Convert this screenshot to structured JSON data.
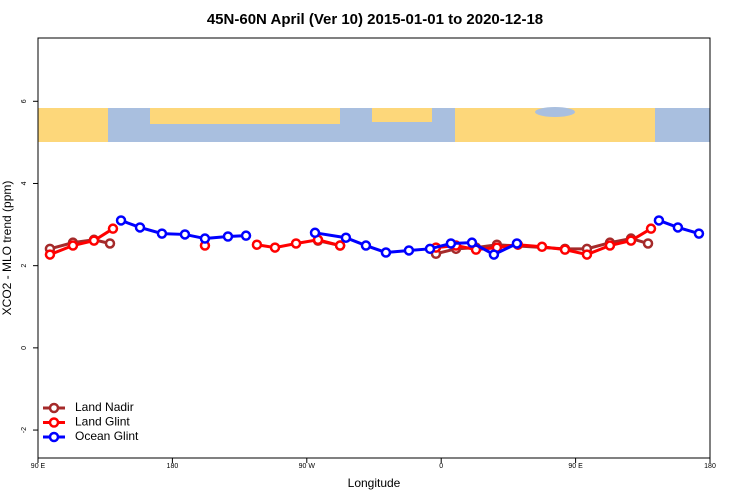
{
  "chart_data": {
    "type": "line",
    "title": "45N-60N April (Ver 10)   2015-01-01 to 2020-12-18",
    "x_label": "Longitude",
    "y_label": "XCO2 - MLO trend (ppm)",
    "xlim": [
      90,
      540
    ],
    "xticks": [
      {
        "value": 90,
        "label": "90 E"
      },
      180,
      {
        "value": 270,
        "label": "90 W"
      },
      {
        "value": 360,
        "label": "0"
      },
      {
        "value": 450,
        "label": "90 E"
      },
      {
        "value": 540,
        "label": "180"
      }
    ],
    "ylim": [
      -2.68,
      7.54
    ],
    "yticks": [
      -2,
      0,
      2,
      4,
      6
    ],
    "legend": "bottom-left",
    "series": [
      {
        "name": "Land Nadir",
        "color": "#a52a2a",
        "x": [
          98.0,
          113.4,
          127.5,
          138.2,
          null,
          277.5,
          292.3,
          null,
          356.5,
          369.9,
          383.3,
          397.3,
          442.9,
          457.6,
          473.0,
          487.1,
          498.5
        ],
        "values": [
          2.41,
          2.56,
          2.63,
          2.54,
          null,
          2.61,
          2.49,
          null,
          2.29,
          2.41,
          2.44,
          2.51,
          2.41,
          2.41,
          2.56,
          2.66,
          2.54
        ]
      },
      {
        "name": "Land Glint",
        "color": "#ff0000",
        "x": [
          98.0,
          113.4,
          127.5,
          140.2,
          null,
          201.8,
          null,
          236.6,
          248.7,
          262.8,
          277.5,
          292.3,
          null,
          356.5,
          369.9,
          383.3,
          397.3,
          411.4,
          427.5,
          442.9,
          457.6,
          473.0,
          487.1,
          500.5
        ],
        "values": [
          2.27,
          2.49,
          2.61,
          2.9,
          null,
          2.49,
          null,
          2.51,
          2.44,
          2.54,
          2.63,
          2.49,
          null,
          2.44,
          2.49,
          2.39,
          2.44,
          2.51,
          2.46,
          2.39,
          2.27,
          2.49,
          2.61,
          2.9
        ]
      },
      {
        "name": "Ocean Glint",
        "color": "#0000ff",
        "x": [
          145.6,
          158.3,
          173.0,
          188.4,
          201.8,
          217.2,
          229.3,
          null,
          275.5,
          296.2,
          309.6,
          323.0,
          338.4,
          352.5,
          366.5,
          380.6,
          395.3,
          410.7,
          null,
          505.8,
          518.5,
          532.6
        ],
        "values": [
          3.1,
          2.93,
          2.78,
          2.76,
          2.66,
          2.71,
          2.73,
          null,
          2.8,
          2.68,
          2.49,
          2.32,
          2.37,
          2.41,
          2.54,
          2.56,
          2.27,
          2.54,
          null,
          3.1,
          2.93,
          2.78
        ]
      }
    ]
  }
}
